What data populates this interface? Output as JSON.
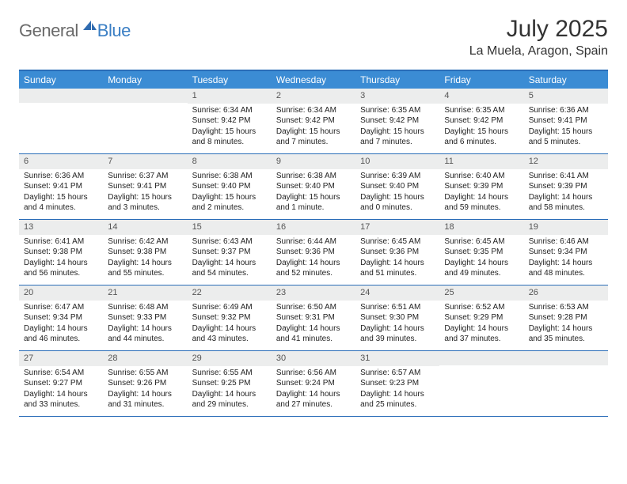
{
  "logo": {
    "general": "General",
    "blue": "Blue"
  },
  "title": "July 2025",
  "location": "La Muela, Aragon, Spain",
  "colors": {
    "header_bg": "#3b8cd4",
    "border": "#2a6db8",
    "daynum_bg": "#eceded",
    "logo_gray": "#6a6a6a",
    "logo_blue": "#3b7fc4"
  },
  "day_headers": [
    "Sunday",
    "Monday",
    "Tuesday",
    "Wednesday",
    "Thursday",
    "Friday",
    "Saturday"
  ],
  "weeks": [
    [
      {
        "n": "",
        "sunrise": "",
        "sunset": "",
        "daylight": ""
      },
      {
        "n": "",
        "sunrise": "",
        "sunset": "",
        "daylight": ""
      },
      {
        "n": "1",
        "sunrise": "Sunrise: 6:34 AM",
        "sunset": "Sunset: 9:42 PM",
        "daylight": "Daylight: 15 hours and 8 minutes."
      },
      {
        "n": "2",
        "sunrise": "Sunrise: 6:34 AM",
        "sunset": "Sunset: 9:42 PM",
        "daylight": "Daylight: 15 hours and 7 minutes."
      },
      {
        "n": "3",
        "sunrise": "Sunrise: 6:35 AM",
        "sunset": "Sunset: 9:42 PM",
        "daylight": "Daylight: 15 hours and 7 minutes."
      },
      {
        "n": "4",
        "sunrise": "Sunrise: 6:35 AM",
        "sunset": "Sunset: 9:42 PM",
        "daylight": "Daylight: 15 hours and 6 minutes."
      },
      {
        "n": "5",
        "sunrise": "Sunrise: 6:36 AM",
        "sunset": "Sunset: 9:41 PM",
        "daylight": "Daylight: 15 hours and 5 minutes."
      }
    ],
    [
      {
        "n": "6",
        "sunrise": "Sunrise: 6:36 AM",
        "sunset": "Sunset: 9:41 PM",
        "daylight": "Daylight: 15 hours and 4 minutes."
      },
      {
        "n": "7",
        "sunrise": "Sunrise: 6:37 AM",
        "sunset": "Sunset: 9:41 PM",
        "daylight": "Daylight: 15 hours and 3 minutes."
      },
      {
        "n": "8",
        "sunrise": "Sunrise: 6:38 AM",
        "sunset": "Sunset: 9:40 PM",
        "daylight": "Daylight: 15 hours and 2 minutes."
      },
      {
        "n": "9",
        "sunrise": "Sunrise: 6:38 AM",
        "sunset": "Sunset: 9:40 PM",
        "daylight": "Daylight: 15 hours and 1 minute."
      },
      {
        "n": "10",
        "sunrise": "Sunrise: 6:39 AM",
        "sunset": "Sunset: 9:40 PM",
        "daylight": "Daylight: 15 hours and 0 minutes."
      },
      {
        "n": "11",
        "sunrise": "Sunrise: 6:40 AM",
        "sunset": "Sunset: 9:39 PM",
        "daylight": "Daylight: 14 hours and 59 minutes."
      },
      {
        "n": "12",
        "sunrise": "Sunrise: 6:41 AM",
        "sunset": "Sunset: 9:39 PM",
        "daylight": "Daylight: 14 hours and 58 minutes."
      }
    ],
    [
      {
        "n": "13",
        "sunrise": "Sunrise: 6:41 AM",
        "sunset": "Sunset: 9:38 PM",
        "daylight": "Daylight: 14 hours and 56 minutes."
      },
      {
        "n": "14",
        "sunrise": "Sunrise: 6:42 AM",
        "sunset": "Sunset: 9:38 PM",
        "daylight": "Daylight: 14 hours and 55 minutes."
      },
      {
        "n": "15",
        "sunrise": "Sunrise: 6:43 AM",
        "sunset": "Sunset: 9:37 PM",
        "daylight": "Daylight: 14 hours and 54 minutes."
      },
      {
        "n": "16",
        "sunrise": "Sunrise: 6:44 AM",
        "sunset": "Sunset: 9:36 PM",
        "daylight": "Daylight: 14 hours and 52 minutes."
      },
      {
        "n": "17",
        "sunrise": "Sunrise: 6:45 AM",
        "sunset": "Sunset: 9:36 PM",
        "daylight": "Daylight: 14 hours and 51 minutes."
      },
      {
        "n": "18",
        "sunrise": "Sunrise: 6:45 AM",
        "sunset": "Sunset: 9:35 PM",
        "daylight": "Daylight: 14 hours and 49 minutes."
      },
      {
        "n": "19",
        "sunrise": "Sunrise: 6:46 AM",
        "sunset": "Sunset: 9:34 PM",
        "daylight": "Daylight: 14 hours and 48 minutes."
      }
    ],
    [
      {
        "n": "20",
        "sunrise": "Sunrise: 6:47 AM",
        "sunset": "Sunset: 9:34 PM",
        "daylight": "Daylight: 14 hours and 46 minutes."
      },
      {
        "n": "21",
        "sunrise": "Sunrise: 6:48 AM",
        "sunset": "Sunset: 9:33 PM",
        "daylight": "Daylight: 14 hours and 44 minutes."
      },
      {
        "n": "22",
        "sunrise": "Sunrise: 6:49 AM",
        "sunset": "Sunset: 9:32 PM",
        "daylight": "Daylight: 14 hours and 43 minutes."
      },
      {
        "n": "23",
        "sunrise": "Sunrise: 6:50 AM",
        "sunset": "Sunset: 9:31 PM",
        "daylight": "Daylight: 14 hours and 41 minutes."
      },
      {
        "n": "24",
        "sunrise": "Sunrise: 6:51 AM",
        "sunset": "Sunset: 9:30 PM",
        "daylight": "Daylight: 14 hours and 39 minutes."
      },
      {
        "n": "25",
        "sunrise": "Sunrise: 6:52 AM",
        "sunset": "Sunset: 9:29 PM",
        "daylight": "Daylight: 14 hours and 37 minutes."
      },
      {
        "n": "26",
        "sunrise": "Sunrise: 6:53 AM",
        "sunset": "Sunset: 9:28 PM",
        "daylight": "Daylight: 14 hours and 35 minutes."
      }
    ],
    [
      {
        "n": "27",
        "sunrise": "Sunrise: 6:54 AM",
        "sunset": "Sunset: 9:27 PM",
        "daylight": "Daylight: 14 hours and 33 minutes."
      },
      {
        "n": "28",
        "sunrise": "Sunrise: 6:55 AM",
        "sunset": "Sunset: 9:26 PM",
        "daylight": "Daylight: 14 hours and 31 minutes."
      },
      {
        "n": "29",
        "sunrise": "Sunrise: 6:55 AM",
        "sunset": "Sunset: 9:25 PM",
        "daylight": "Daylight: 14 hours and 29 minutes."
      },
      {
        "n": "30",
        "sunrise": "Sunrise: 6:56 AM",
        "sunset": "Sunset: 9:24 PM",
        "daylight": "Daylight: 14 hours and 27 minutes."
      },
      {
        "n": "31",
        "sunrise": "Sunrise: 6:57 AM",
        "sunset": "Sunset: 9:23 PM",
        "daylight": "Daylight: 14 hours and 25 minutes."
      },
      {
        "n": "",
        "sunrise": "",
        "sunset": "",
        "daylight": ""
      },
      {
        "n": "",
        "sunrise": "",
        "sunset": "",
        "daylight": ""
      }
    ]
  ]
}
